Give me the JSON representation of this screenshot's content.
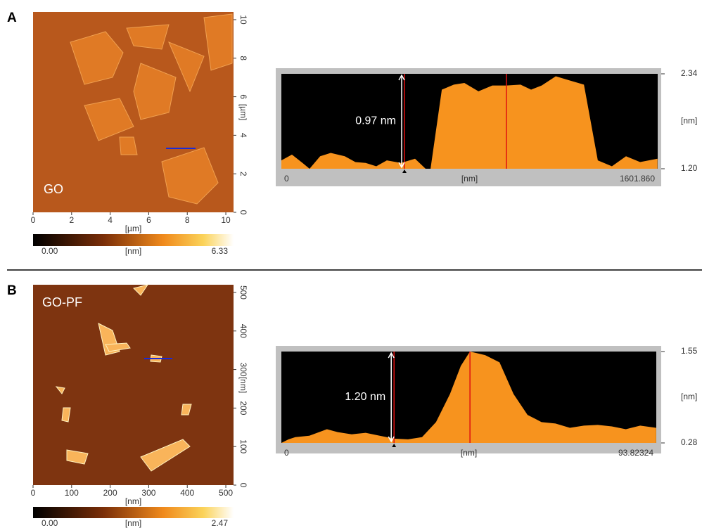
{
  "panels": [
    {
      "label": "A",
      "sample": "GO",
      "image": {
        "xticks": [
          0,
          2,
          4,
          6,
          8,
          10
        ],
        "yticks": [
          0,
          2,
          4,
          6,
          8,
          10
        ],
        "xlim": [
          0,
          10.4
        ],
        "ylim": [
          0,
          10.4
        ],
        "unit": "[µm]",
        "colorbar": {
          "min": {
            "value": 0,
            "label": "0.00"
          },
          "max": 6.33,
          "unit": "[nm]"
        }
      },
      "profile": {
        "x": [
          0,
          45,
          90,
          120,
          165,
          210,
          270,
          315,
          359,
          404,
          449,
          509,
          569,
          614,
          635,
          683,
          734,
          779,
          839,
          898,
          958,
          1018,
          1063,
          1108,
          1168,
          1228,
          1288,
          1347,
          1407,
          1467,
          1527,
          1601
        ],
        "values": [
          1.3,
          1.37,
          1.27,
          1.2,
          1.35,
          1.39,
          1.35,
          1.28,
          1.27,
          1.23,
          1.3,
          1.27,
          1.32,
          1.2,
          1.2,
          2.15,
          2.21,
          2.23,
          2.13,
          2.2,
          2.2,
          2.21,
          2.15,
          2.2,
          2.31,
          2.26,
          2.21,
          1.3,
          1.23,
          1.35,
          1.28,
          1.32
        ],
        "xlim": [
          0,
          1601.86
        ],
        "xticks": [
          0,
          {
            "value": 1601.86,
            "label": "1601.860"
          }
        ],
        "ylim": [
          1.2,
          2.34
        ],
        "yticks": [
          {
            "value": 1.2,
            "label": "1.20"
          },
          2.34
        ],
        "xlabel": "[nm]",
        "ylabel": "[nm]",
        "cursors": [
          524,
          958
        ],
        "annotation": "0.97 nm"
      }
    },
    {
      "label": "B",
      "sample": "GO-PF",
      "image": {
        "xticks": [
          0,
          100,
          200,
          300,
          400,
          500
        ],
        "yticks": [
          0,
          100,
          200,
          300,
          400,
          500
        ],
        "xlim": [
          0,
          520
        ],
        "ylim": [
          0,
          520
        ],
        "unit": "[nm]",
        "colorbar": {
          "min": {
            "value": 0,
            "label": "0.00"
          },
          "max": 2.47,
          "unit": "[nm]"
        }
      },
      "profile": {
        "x": [
          0,
          1.8,
          3.5,
          7.0,
          11.4,
          14.1,
          17.6,
          21.1,
          24.6,
          28.2,
          31.7,
          35.2,
          38.7,
          42.2,
          44.9,
          47.2,
          51.0,
          54.6,
          58.1,
          61.6,
          65.1,
          68.6,
          72.2,
          75.7,
          79.2,
          82.7,
          86.2,
          89.8,
          93.8
        ],
        "values": [
          0.28,
          0.33,
          0.36,
          0.38,
          0.47,
          0.43,
          0.4,
          0.42,
          0.38,
          0.34,
          0.33,
          0.36,
          0.57,
          0.96,
          1.35,
          1.55,
          1.5,
          1.4,
          0.96,
          0.67,
          0.57,
          0.55,
          0.49,
          0.52,
          0.53,
          0.51,
          0.47,
          0.52,
          0.49
        ],
        "xlim": [
          0,
          93.82324
        ],
        "xticks": [
          0,
          93.82324
        ],
        "ylim": [
          0.28,
          1.55
        ],
        "yticks": [
          0.28,
          1.55
        ],
        "xlabel": "[nm]",
        "ylabel": "[nm]",
        "cursors": [
          28.2,
          47.2
        ],
        "annotation": "1.20 nm"
      }
    }
  ]
}
